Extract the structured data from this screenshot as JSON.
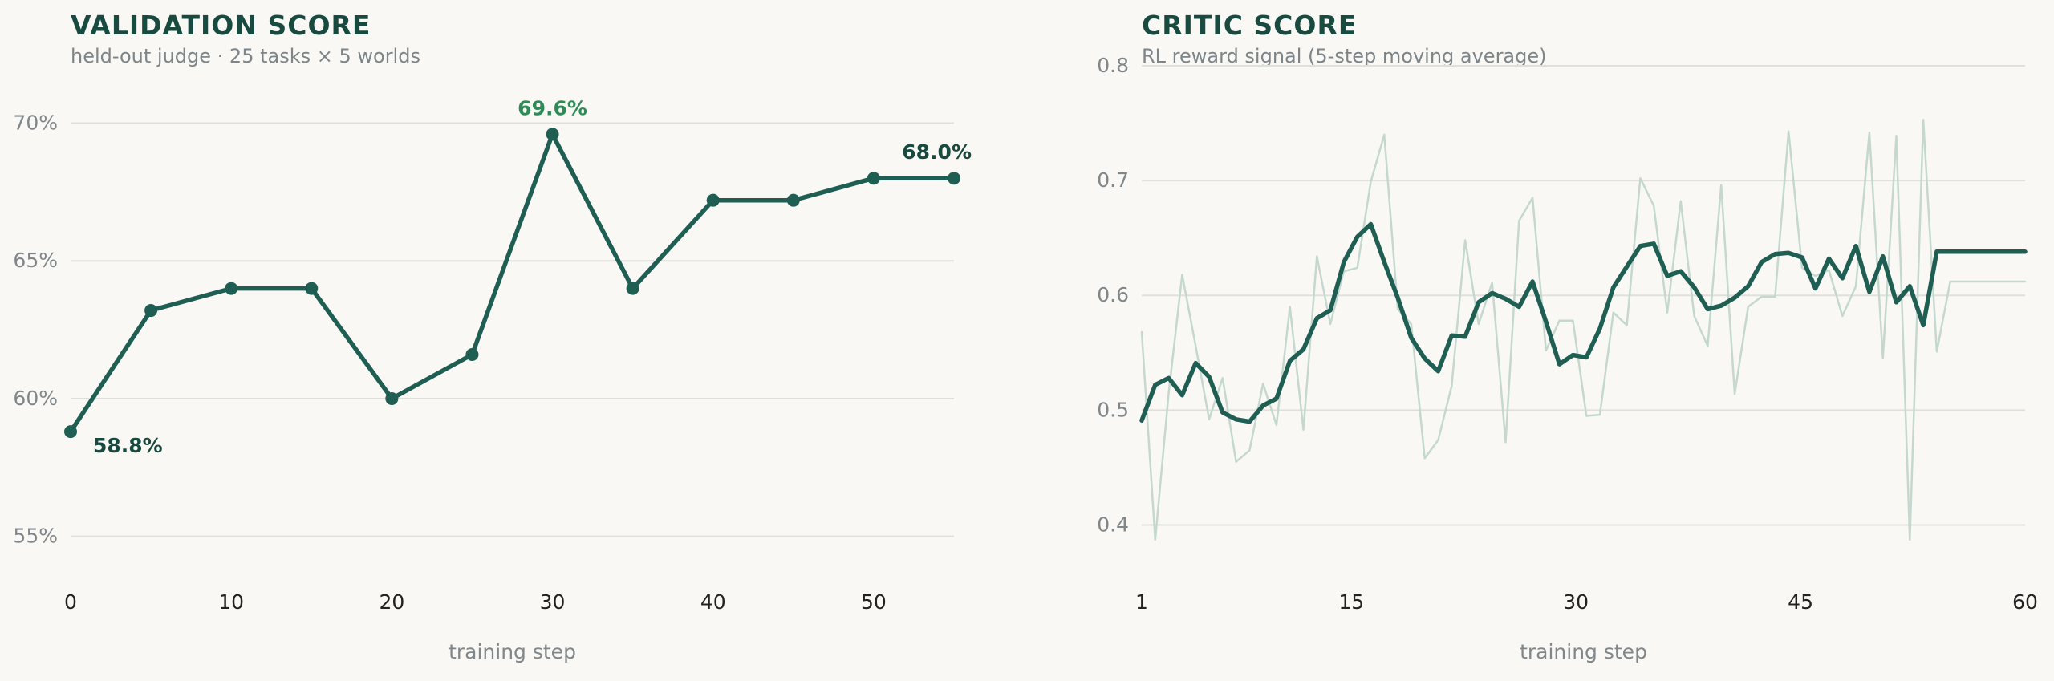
{
  "colors": {
    "background": "#faf8f4",
    "main_line": "#1f5e52",
    "raw_line": "#c5d8d0",
    "grid": "#dfdfdb",
    "title": "#184a40",
    "peak_label": "#2e8b57",
    "muted_text": "#80878b"
  },
  "chart_data": [
    {
      "type": "line",
      "title": "VALIDATION SCORE",
      "subtitle": "held-out judge · 25 tasks × 5 worlds",
      "xlabel": "training step",
      "ylabel": "",
      "xlim": [
        0,
        55
      ],
      "ylim": [
        54,
        71.5
      ],
      "xticks": [
        0,
        10,
        20,
        30,
        40,
        50
      ],
      "xtick_labels": [
        "0",
        "10",
        "20",
        "30",
        "40",
        "50"
      ],
      "yticks": [
        55,
        60,
        65,
        70
      ],
      "ytick_labels": [
        "55%",
        "60%",
        "65%",
        "70%"
      ],
      "grid": "horizontal",
      "series": [
        {
          "x": [
            0,
            5,
            10,
            15,
            20,
            25,
            30,
            35,
            40,
            45,
            50,
            55
          ],
          "values": [
            58.8,
            63.2,
            64.0,
            64.0,
            60.0,
            61.6,
            69.6,
            64.0,
            67.2,
            67.2,
            68.0,
            68.0
          ],
          "markers": true
        }
      ],
      "annotations": [
        {
          "x": 0,
          "y": 58.8,
          "text": "58.8%",
          "style": "start"
        },
        {
          "x": 30,
          "y": 69.6,
          "text": "69.6%",
          "style": "peak"
        },
        {
          "x": 55,
          "y": 68.0,
          "text": "68.0%",
          "style": "end"
        }
      ]
    },
    {
      "type": "line",
      "title": "CRITIC SCORE",
      "subtitle": "RL reward signal (5-step moving average)",
      "xlabel": "training step",
      "ylabel": "",
      "xlim": [
        1,
        60
      ],
      "ylim": [
        0.35,
        0.8
      ],
      "xticks": [
        1,
        15,
        30,
        45,
        60
      ],
      "xtick_labels": [
        "1",
        "15",
        "30",
        "45",
        "60"
      ],
      "yticks": [
        0.4,
        0.5,
        0.6,
        0.7,
        0.8
      ],
      "ytick_labels": [
        "0.4",
        "0.5",
        "0.6",
        "0.7",
        "0.8"
      ],
      "grid": "horizontal",
      "series": [
        {
          "style": "raw",
          "x": [
            1,
            1.9,
            2.8,
            3.7,
            4.6,
            5.5,
            6.4,
            7.3,
            8.2,
            9.1,
            10.0,
            10.9,
            11.8,
            12.7,
            13.6,
            14.5,
            15.4,
            16.3,
            17.2,
            18.1,
            19.0,
            19.9,
            20.8,
            21.7,
            22.6,
            23.5,
            24.4,
            25.3,
            26.2,
            27.1,
            28.0,
            28.9,
            29.8,
            30.7,
            31.6,
            32.5,
            33.4,
            34.3,
            35.2,
            36.1,
            37.0,
            37.9,
            38.8,
            39.7,
            40.6,
            41.5,
            42.4,
            43.3,
            44.2,
            45.1,
            46.0,
            46.9,
            47.8,
            48.7,
            49.6,
            50.5,
            51.4,
            52.3,
            53.2,
            54.1,
            55.0,
            55.9,
            56.8,
            57.7,
            58.6,
            59.5,
            60.0
          ],
          "values": [
            0.568,
            0.387,
            0.515,
            0.618,
            0.556,
            0.492,
            0.528,
            0.455,
            0.465,
            0.523,
            0.487,
            0.59,
            0.483,
            0.634,
            0.575,
            0.621,
            0.624,
            0.699,
            0.74,
            0.588,
            0.575,
            0.458,
            0.474,
            0.521,
            0.648,
            0.575,
            0.611,
            0.472,
            0.665,
            0.685,
            0.552,
            0.578,
            0.578,
            0.495,
            0.496,
            0.585,
            0.574,
            0.702,
            0.678,
            0.585,
            0.682,
            0.582,
            0.556,
            0.696,
            0.514,
            0.59,
            0.599,
            0.599,
            0.743,
            0.624,
            0.617,
            0.622,
            0.582,
            0.608,
            0.742,
            0.545,
            0.739,
            0.387,
            0.753,
            0.551,
            0.612,
            0.612,
            0.612,
            0.612,
            0.612,
            0.612,
            0.612
          ]
        },
        {
          "style": "smoothed",
          "x": [
            1,
            1.9,
            2.8,
            3.7,
            4.6,
            5.5,
            6.4,
            7.3,
            8.2,
            9.1,
            10.0,
            10.9,
            11.8,
            12.7,
            13.6,
            14.5,
            15.4,
            16.3,
            17.2,
            18.1,
            19.0,
            19.9,
            20.8,
            21.7,
            22.6,
            23.5,
            24.4,
            25.3,
            26.2,
            27.1,
            28.0,
            28.9,
            29.8,
            30.7,
            31.6,
            32.5,
            33.4,
            34.3,
            35.2,
            36.1,
            37.0,
            37.9,
            38.8,
            39.7,
            40.6,
            41.5,
            42.4,
            43.3,
            44.2,
            45.1,
            46.0,
            46.9,
            47.8,
            48.7,
            49.6,
            50.5,
            51.4,
            52.3,
            53.2,
            54.1,
            55.0,
            55.9,
            56.8,
            57.7,
            58.6,
            59.5,
            60.0
          ],
          "values": [
            0.491,
            0.522,
            0.528,
            0.513,
            0.541,
            0.529,
            0.498,
            0.492,
            0.49,
            0.504,
            0.51,
            0.543,
            0.553,
            0.58,
            0.587,
            0.629,
            0.651,
            0.662,
            0.629,
            0.598,
            0.563,
            0.545,
            0.534,
            0.565,
            0.564,
            0.594,
            0.602,
            0.597,
            0.59,
            0.612,
            0.577,
            0.54,
            0.548,
            0.546,
            0.571,
            0.607,
            0.625,
            0.643,
            0.645,
            0.617,
            0.621,
            0.607,
            0.588,
            0.591,
            0.598,
            0.608,
            0.629,
            0.636,
            0.637,
            0.633,
            0.606,
            0.632,
            0.615,
            0.643,
            0.603,
            0.634,
            0.594,
            0.608,
            0.574,
            0.638,
            0.638,
            0.638,
            0.638,
            0.638,
            0.638,
            0.638,
            0.638
          ]
        }
      ]
    }
  ]
}
